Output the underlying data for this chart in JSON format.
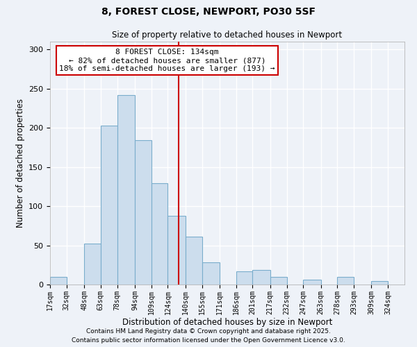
{
  "title": "8, FOREST CLOSE, NEWPORT, PO30 5SF",
  "subtitle": "Size of property relative to detached houses in Newport",
  "xlabel": "Distribution of detached houses by size in Newport",
  "ylabel": "Number of detached properties",
  "bar_color": "#ccdded",
  "bar_edge_color": "#7aadcc",
  "background_color": "#eef2f8",
  "grid_color": "#ffffff",
  "vline_value": 134,
  "vline_color": "#cc0000",
  "annotation_line1": "8 FOREST CLOSE: 134sqm",
  "annotation_line2": "← 82% of detached houses are smaller (877)",
  "annotation_line3": "18% of semi-detached houses are larger (193) →",
  "annotation_box_color": "#ffffff",
  "annotation_box_edge": "#cc0000",
  "bin_labels": [
    "17sqm",
    "32sqm",
    "48sqm",
    "63sqm",
    "78sqm",
    "94sqm",
    "109sqm",
    "124sqm",
    "140sqm",
    "155sqm",
    "171sqm",
    "186sqm",
    "201sqm",
    "217sqm",
    "232sqm",
    "247sqm",
    "263sqm",
    "278sqm",
    "293sqm",
    "309sqm",
    "324sqm"
  ],
  "bin_edges": [
    17,
    32,
    48,
    63,
    78,
    94,
    109,
    124,
    140,
    155,
    171,
    186,
    201,
    217,
    232,
    247,
    263,
    278,
    293,
    309,
    324,
    339
  ],
  "bar_heights": [
    10,
    0,
    52,
    203,
    242,
    184,
    129,
    88,
    61,
    28,
    0,
    17,
    19,
    10,
    0,
    6,
    0,
    10,
    0,
    4,
    0
  ],
  "ylim": [
    0,
    310
  ],
  "yticks": [
    0,
    50,
    100,
    150,
    200,
    250,
    300
  ],
  "footnote1": "Contains HM Land Registry data © Crown copyright and database right 2025.",
  "footnote2": "Contains public sector information licensed under the Open Government Licence v3.0."
}
